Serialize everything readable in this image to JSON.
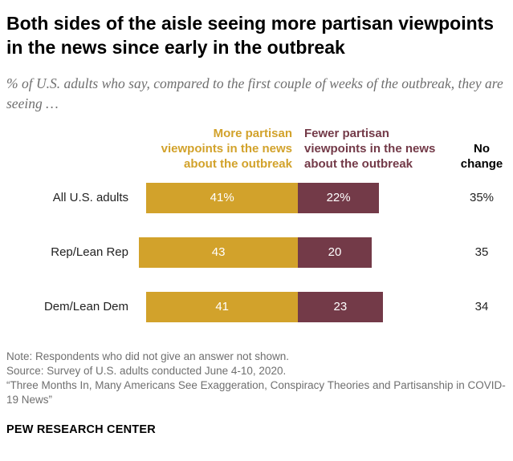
{
  "title": "Both sides of the aisle seeing more partisan viewpoints in the news since early in the outbreak",
  "subtitle": "% of U.S. adults who say, compared to the first couple of weeks of the outbreak, they are seeing …",
  "colors": {
    "more": "#d2a22b",
    "fewer": "#733a48",
    "more_text": "#d2a22b",
    "fewer_text": "#733a48"
  },
  "chart_data": {
    "type": "bar",
    "orientation": "horizontal",
    "stacked": true,
    "categories": [
      "All U.S. adults",
      "Rep/Lean Rep",
      "Dem/Lean Dem"
    ],
    "series": [
      {
        "name": "More partisan\nviewpoints in the news\nabout the outbreak",
        "values": [
          41,
          43,
          41
        ],
        "labels": [
          "41%",
          "43",
          "41"
        ]
      },
      {
        "name": "Fewer partisan\nviewpoints in the news\nabout the outbreak",
        "values": [
          22,
          20,
          23
        ],
        "labels": [
          "22%",
          "20",
          "23"
        ]
      }
    ],
    "no_change": {
      "name": "No\nchange",
      "values": [
        35,
        35,
        34
      ],
      "labels": [
        "35%",
        "35",
        "34"
      ]
    }
  },
  "notes": {
    "note": "Note: Respondents who did not give an answer not shown.",
    "source": "Source: Survey of U.S. adults conducted June 4-10, 2020.",
    "report": "“Three Months In, Many Americans See Exaggeration, Conspiracy Theories and Partisanship in COVID-19 News”"
  },
  "organization": "PEW RESEARCH CENTER"
}
